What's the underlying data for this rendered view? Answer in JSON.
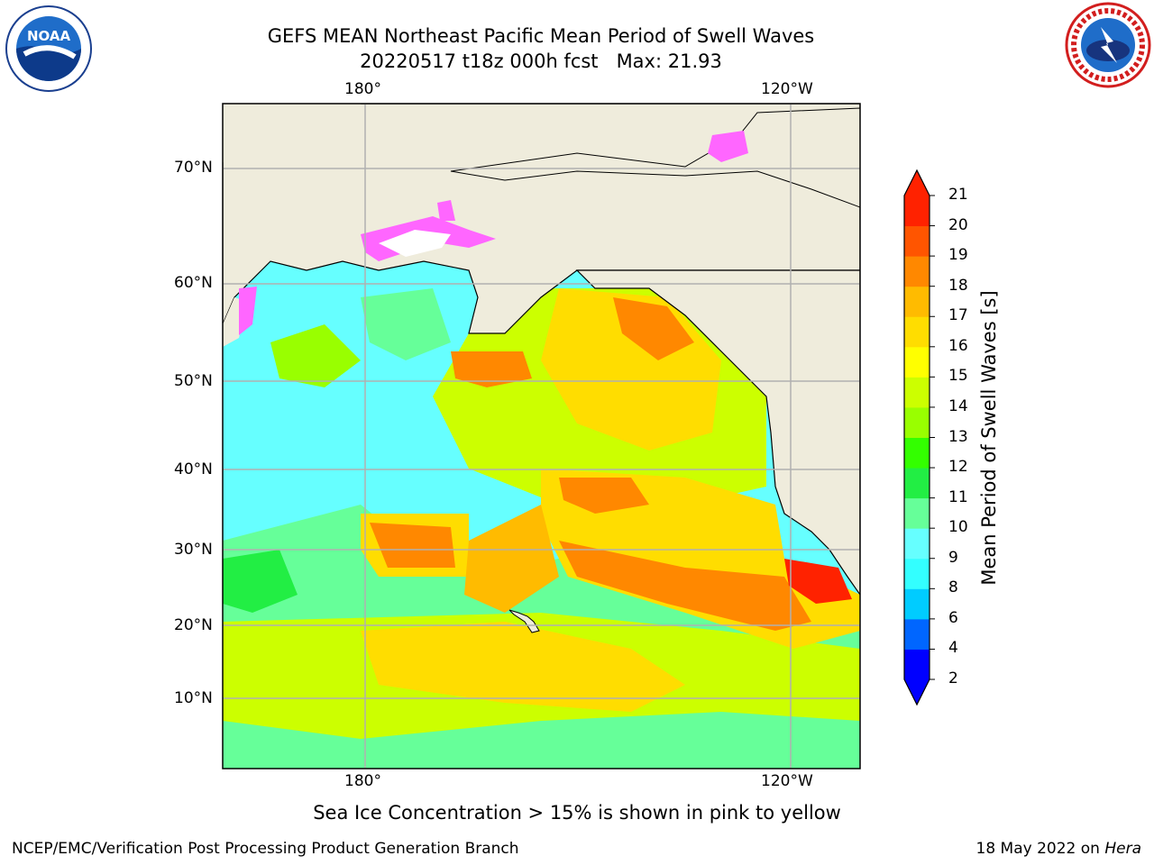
{
  "header": {
    "title": "GEFS MEAN Northeast Pacific Mean Period of Swell Waves",
    "subtitle": "20220517 t18z 000h fcst   Max: 21.93"
  },
  "logos": {
    "left": {
      "icon": "noaa-logo-icon",
      "text": "NOAA"
    },
    "right": {
      "icon": "nws-logo-icon",
      "text": "NATIONAL WEATHER SERVICE"
    }
  },
  "map": {
    "longitude_labels": [
      "180°",
      "120°W"
    ],
    "latitude_labels": [
      "70°N",
      "60°N",
      "50°N",
      "40°N",
      "30°N",
      "20°N",
      "10°N"
    ],
    "colors": {
      "land": "#efecdc",
      "gridline": "#b0b0b0",
      "coastline": "#000000"
    }
  },
  "colorbar": {
    "label": "Mean Period of Swell Waves [s]",
    "ticks": [
      "2",
      "4",
      "6",
      "8",
      "9",
      "10",
      "11",
      "12",
      "13",
      "14",
      "15",
      "16",
      "17",
      "18",
      "19",
      "20",
      "21"
    ],
    "colors": [
      "#0000ff",
      "#0066ff",
      "#00ccff",
      "#33ffff",
      "#66ffff",
      "#66ff99",
      "#22ee44",
      "#33ff00",
      "#99ff00",
      "#ccff00",
      "#ffff00",
      "#ffdd00",
      "#ffbb00",
      "#ff8800",
      "#ff5500",
      "#ff2200"
    ]
  },
  "notes": {
    "sea_ice": "Sea Ice Concentration > 15% is shown in pink to yellow",
    "credit": "NCEP/EMC/Verification Post Processing Product Generation Branch",
    "date": "18 May 2022 on ",
    "host": "Hera"
  }
}
